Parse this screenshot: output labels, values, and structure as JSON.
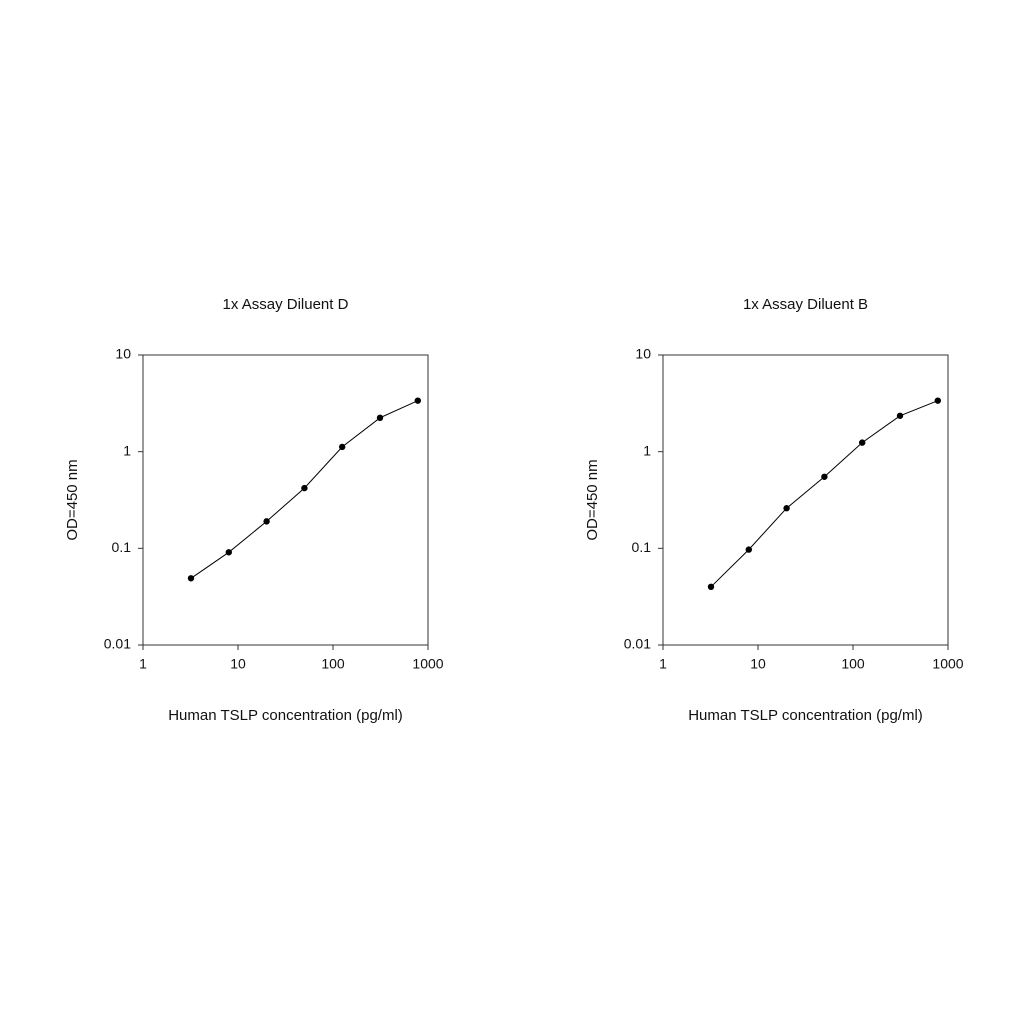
{
  "chart_data": [
    {
      "type": "line",
      "title": "1x Assay Diluent D",
      "x_label": "Human TSLP concentration (pg/ml)",
      "y_label": "OD=450 nm",
      "x": [
        3.2,
        8,
        20,
        50,
        125,
        312.5,
        781
      ],
      "series": [
        {
          "color": "#000000",
          "values": [
            0.049,
            0.091,
            0.19,
            0.42,
            1.12,
            2.24,
            3.37
          ]
        }
      ],
      "xlim": [
        1,
        1000
      ],
      "xticks": [
        1,
        10,
        100,
        1000
      ],
      "ylim": [
        0.01,
        10
      ],
      "yticks": [
        0.01,
        0.1,
        1,
        10
      ],
      "xscale": "log",
      "yscale": "log",
      "grid": false
    },
    {
      "type": "line",
      "title": "1x Assay Diluent B",
      "x_label": "Human TSLP concentration (pg/ml)",
      "y_label": "OD=450 nm",
      "x": [
        3.2,
        8,
        20,
        50,
        125,
        312.5,
        781
      ],
      "series": [
        {
          "color": "#000000",
          "values": [
            0.04,
            0.097,
            0.26,
            0.55,
            1.24,
            2.35,
            3.37
          ]
        }
      ],
      "xlim": [
        1,
        1000
      ],
      "xticks": [
        1,
        10,
        100,
        1000
      ],
      "ylim": [
        0.01,
        10
      ],
      "yticks": [
        0.01,
        0.1,
        1,
        10
      ],
      "xscale": "log",
      "yscale": "log",
      "grid": false
    }
  ]
}
